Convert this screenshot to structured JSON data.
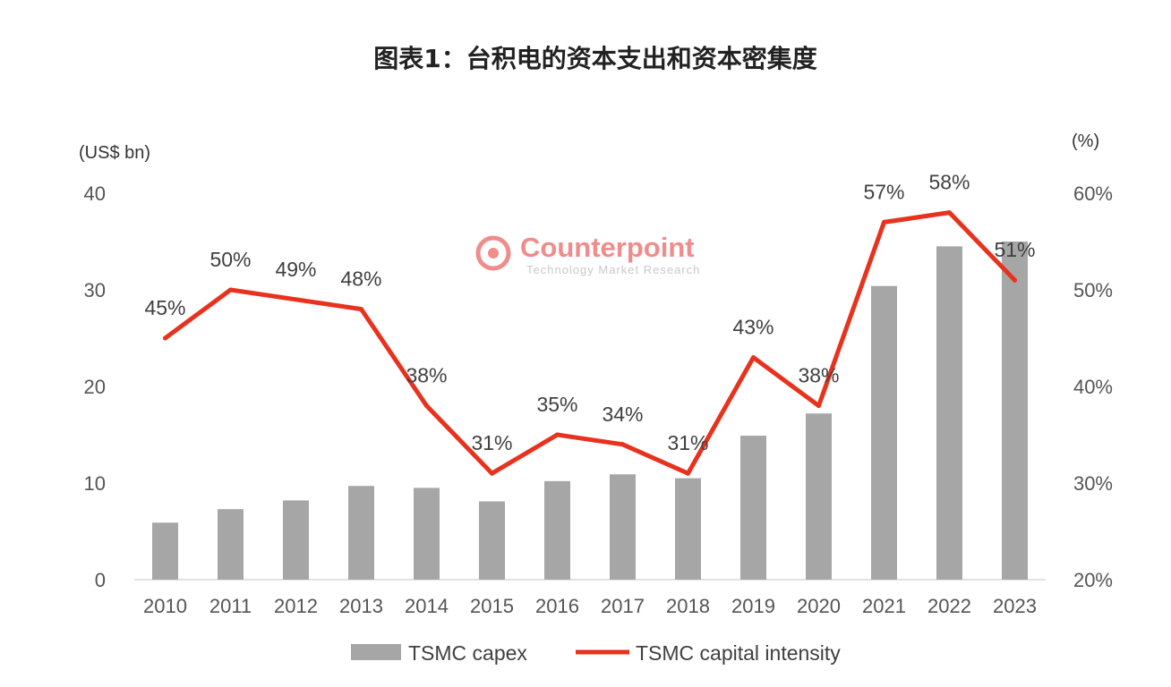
{
  "title": "图表1：台积电的资本支出和资本密集度",
  "watermark": {
    "name": "Counterpoint",
    "tagline": "Technology Market Research"
  },
  "colors": {
    "bars": "#a6a6a6",
    "line": "#e8321e",
    "watermark": "#f08c8c"
  },
  "chart_data": {
    "type": "bar+line",
    "categories": [
      "2010",
      "2011",
      "2012",
      "2013",
      "2014",
      "2015",
      "2016",
      "2017",
      "2018",
      "2019",
      "2020",
      "2021",
      "2022",
      "2023"
    ],
    "series": [
      {
        "name": "TSMC capex",
        "type": "bar",
        "axis": "left",
        "values": [
          5.9,
          7.3,
          8.2,
          9.7,
          9.5,
          8.1,
          10.2,
          10.9,
          10.5,
          14.9,
          17.2,
          30.4,
          34.5,
          35.0
        ]
      },
      {
        "name": "TSMC capital intensity",
        "type": "line",
        "axis": "right",
        "values": [
          45,
          50,
          49,
          48,
          38,
          31,
          35,
          34,
          31,
          43,
          38,
          57,
          58,
          51
        ],
        "labels": [
          "45%",
          "50%",
          "49%",
          "48%",
          "38%",
          "31%",
          "35%",
          "34%",
          "31%",
          "43%",
          "38%",
          "57%",
          "58%",
          "51%"
        ]
      }
    ],
    "left_axis": {
      "unit": "(US$ bn)",
      "ticks": [
        "0",
        "10",
        "20",
        "30",
        "40"
      ],
      "range": [
        0,
        40
      ]
    },
    "right_axis": {
      "unit": "(%)",
      "ticks": [
        "20%",
        "30%",
        "40%",
        "50%",
        "60%"
      ],
      "range": [
        20,
        60
      ]
    },
    "grid": false,
    "legend_position": "bottom"
  }
}
